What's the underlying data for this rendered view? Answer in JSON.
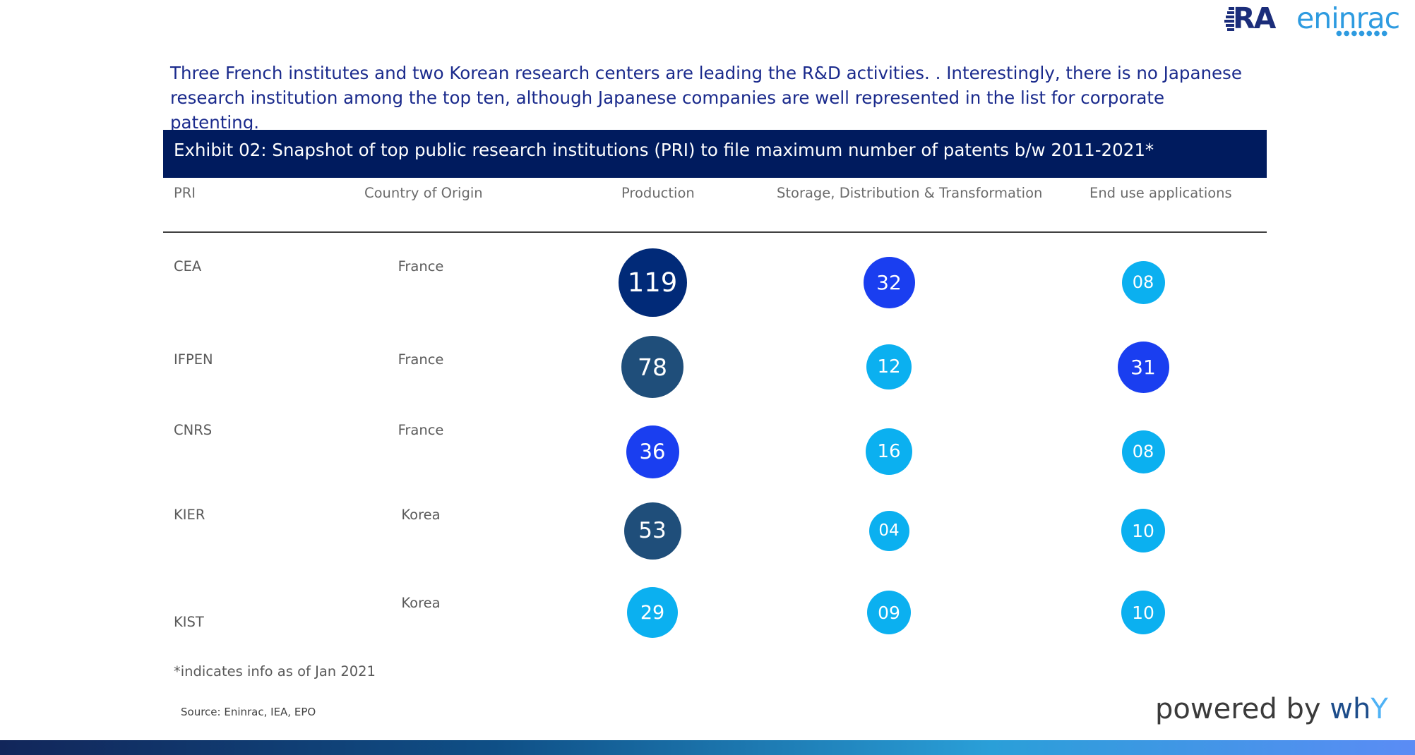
{
  "intro_text": "Three French institutes and two Korean research centers are leading the R&D activities. . Interestingly, there is no Japanese research institution among the top ten, although Japanese companies are well represented in the list for corporate patenting.",
  "logo": {
    "part1": "RA",
    "part2": "eninrac",
    "icon": "eninrac-logo"
  },
  "chart_data": {
    "type": "table",
    "title": "Exhibit 02: Snapshot of top public research institutions (PRI) to file maximum number of patents b/w 2011-2021*",
    "columns": [
      "PRI",
      "Country of Origin",
      "Production",
      "Storage, Distribution & Transformation",
      "End use applications"
    ],
    "rows": [
      {
        "pri": "CEA",
        "country": "France",
        "production": "119",
        "storage": "32",
        "end_use": "08"
      },
      {
        "pri": "IFPEN",
        "country": "France",
        "production": "78",
        "storage": "12",
        "end_use": "31"
      },
      {
        "pri": "CNRS",
        "country": "France",
        "production": "36",
        "storage": "16",
        "end_use": "08"
      },
      {
        "pri": "KIER",
        "country": "Korea",
        "production": "53",
        "storage": "04",
        "end_use": "10"
      },
      {
        "pri": "KIST",
        "country": "Korea",
        "production": "29",
        "storage": "09",
        "end_use": "10"
      }
    ],
    "colors": {
      "navy": "#012a78",
      "slate": "#1f4e7a",
      "royal": "#1a3ef0",
      "sky": "#0bb0f0"
    }
  },
  "footnote": "*indicates info as of Jan 2021",
  "source": "Source: Eninrac,  IEA, EPO",
  "powered": {
    "prefix": "powered by ",
    "brand": "wh",
    "brand_end": "Y"
  }
}
